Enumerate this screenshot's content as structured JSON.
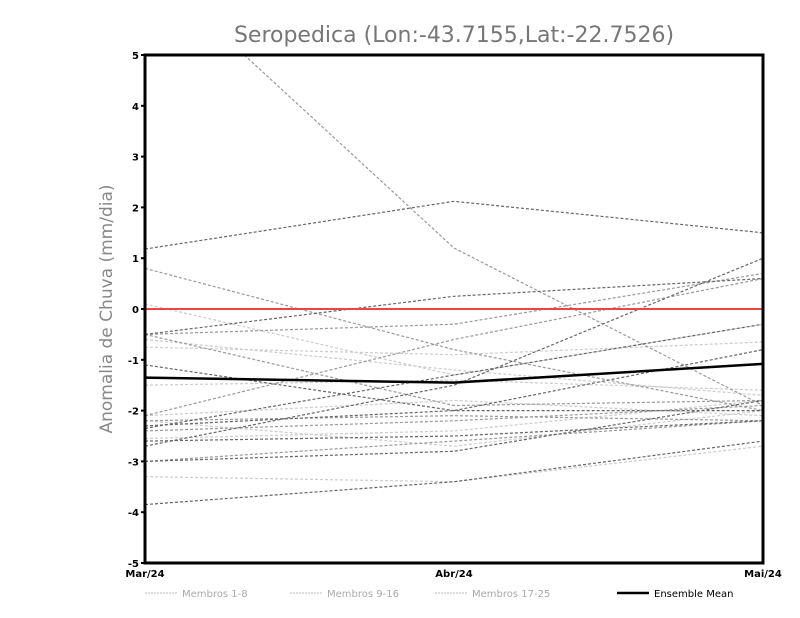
{
  "chart_data": {
    "type": "line",
    "title": "Seropedica (Lon:-43.7155,Lat:-22.7526)",
    "ylabel": "Anomalia de Chuva (mm/dia)",
    "xlabel": "",
    "categories": [
      "Mar/24",
      "Abr/24",
      "Mai/24"
    ],
    "ylim": [
      -5,
      5
    ],
    "yticks": [
      -5,
      -4,
      -3,
      -2,
      -1,
      0,
      1,
      2,
      3,
      4,
      5
    ],
    "reference_line": {
      "value": 0,
      "color": "#ee4444"
    },
    "groups": [
      {
        "name": "Membros 1-8",
        "color": "#cccccc",
        "series": [
          [
            0.1,
            -1.3,
            -0.3
          ],
          [
            -0.75,
            -0.9,
            -0.65
          ],
          [
            -1.5,
            -1.4,
            -1.6
          ],
          [
            -2.1,
            -1.8,
            -2.1
          ],
          [
            -2.55,
            -2.4,
            -1.8
          ],
          [
            -3.3,
            -3.4,
            -2.7
          ],
          [
            -0.6,
            -1.2,
            -1.7
          ],
          [
            -2.2,
            -2.7,
            -2.0
          ]
        ]
      },
      {
        "name": "Membros 9-16",
        "color": "#999999",
        "series": [
          [
            6.8,
            1.2,
            -1.9
          ],
          [
            0.8,
            -0.8,
            -2.0
          ],
          [
            -0.5,
            -0.3,
            0.7
          ],
          [
            -2.1,
            -0.6,
            0.6
          ],
          [
            -2.2,
            -2.1,
            -2.2
          ],
          [
            -2.4,
            -2.2,
            -1.9
          ],
          [
            -3.0,
            -2.6,
            -2.2
          ],
          [
            -0.5,
            -1.9,
            -1.8
          ]
        ]
      },
      {
        "name": "Membros 17-25",
        "color": "#666666",
        "series": [
          [
            1.18,
            2.12,
            1.5
          ],
          [
            -0.5,
            0.25,
            0.6
          ],
          [
            -2.7,
            -1.5,
            1.0
          ],
          [
            -3.0,
            -2.8,
            -1.8
          ],
          [
            -3.85,
            -3.4,
            -2.6
          ],
          [
            -2.6,
            -2.5,
            -2.2
          ],
          [
            -1.1,
            -2.0,
            -2.0
          ],
          [
            -2.3,
            -2.0,
            -0.8
          ],
          [
            -2.35,
            -1.3,
            -0.3
          ]
        ]
      }
    ],
    "ensemble_mean": {
      "name": "Ensemble Mean",
      "color": "#000000",
      "values": [
        -1.35,
        -1.45,
        -1.08
      ]
    },
    "legend_position": "bottom"
  }
}
